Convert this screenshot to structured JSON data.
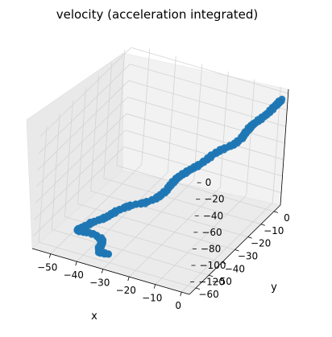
{
  "chart_data": {
    "type": "scatter",
    "title": "velocity (acceleration integrated)",
    "xlabel": "x",
    "ylabel": "y",
    "zlabel": "",
    "xlim": [
      -57,
      3
    ],
    "ylim": [
      -65,
      5
    ],
    "zlim": [
      -135,
      5
    ],
    "x_ticks": [
      "−50",
      "−40",
      "−30",
      "−20",
      "−10",
      "0"
    ],
    "x_tick_values": [
      -50,
      -40,
      -30,
      -20,
      -10,
      0
    ],
    "y_ticks": [
      "0",
      "−10",
      "−20",
      "−30",
      "−40",
      "−50",
      "−60"
    ],
    "y_tick_values": [
      0,
      -10,
      -20,
      -30,
      -40,
      -50,
      -60
    ],
    "z_ticks": [
      "0",
      "−20",
      "−40",
      "−60",
      "−80",
      "−100",
      "−120"
    ],
    "z_tick_values": [
      0,
      -20,
      -40,
      -60,
      -80,
      -100,
      -120
    ],
    "grid": true,
    "marker_color": "#1f77b4",
    "pane_color": "#f2f2f2",
    "grid_color": "#d3d3d3",
    "path_points": [
      {
        "x": 2.4,
        "y": 1.0,
        "z": -2
      },
      {
        "x": 1.8,
        "y": -0.7,
        "z": -5
      },
      {
        "x": 0.9,
        "y": -2.6,
        "z": -9
      },
      {
        "x": -0.3,
        "y": -4.5,
        "z": -14
      },
      {
        "x": -1.9,
        "y": -6.1,
        "z": -19
      },
      {
        "x": -3.3,
        "y": -7.8,
        "z": -23
      },
      {
        "x": -4.1,
        "y": -9.6,
        "z": -26
      },
      {
        "x": -4.6,
        "y": -11.4,
        "z": -30
      },
      {
        "x": -5.1,
        "y": -12.9,
        "z": -34
      },
      {
        "x": -6.5,
        "y": -14.4,
        "z": -39
      },
      {
        "x": -8.4,
        "y": -15.7,
        "z": -43
      },
      {
        "x": -10.8,
        "y": -17.2,
        "z": -47
      },
      {
        "x": -12.5,
        "y": -19.0,
        "z": -51
      },
      {
        "x": -13.8,
        "y": -21.0,
        "z": -55
      },
      {
        "x": -15.6,
        "y": -23.1,
        "z": -60
      },
      {
        "x": -17.4,
        "y": -24.3,
        "z": -64
      },
      {
        "x": -19.1,
        "y": -25.6,
        "z": -68
      },
      {
        "x": -20.7,
        "y": -27.1,
        "z": -72
      },
      {
        "x": -21.9,
        "y": -28.5,
        "z": -76
      },
      {
        "x": -22.6,
        "y": -30.2,
        "z": -80
      },
      {
        "x": -23.4,
        "y": -32.0,
        "z": -85
      },
      {
        "x": -24.5,
        "y": -33.8,
        "z": -89
      },
      {
        "x": -26.3,
        "y": -35.5,
        "z": -93
      },
      {
        "x": -28.8,
        "y": -36.9,
        "z": -97
      },
      {
        "x": -31.7,
        "y": -37.8,
        "z": -100
      },
      {
        "x": -34.6,
        "y": -38.9,
        "z": -104
      },
      {
        "x": -36.9,
        "y": -40.4,
        "z": -108
      },
      {
        "x": -38.4,
        "y": -42.0,
        "z": -111
      },
      {
        "x": -40.0,
        "y": -43.4,
        "z": -115
      },
      {
        "x": -42.3,
        "y": -44.3,
        "z": -119
      },
      {
        "x": -44.6,
        "y": -45.3,
        "z": -123
      },
      {
        "x": -46.4,
        "y": -46.6,
        "z": -127
      },
      {
        "x": -48.1,
        "y": -48.2,
        "z": -130
      },
      {
        "x": -46.6,
        "y": -49.2,
        "z": -129
      },
      {
        "x": -44.3,
        "y": -49.6,
        "z": -127
      },
      {
        "x": -40.8,
        "y": -50.6,
        "z": -125
      },
      {
        "x": -38.0,
        "y": -51.2,
        "z": -126
      },
      {
        "x": -36.7,
        "y": -52.2,
        "z": -128
      },
      {
        "x": -36.6,
        "y": -54.1,
        "z": -131
      },
      {
        "x": -36.0,
        "y": -56.4,
        "z": -133
      },
      {
        "x": -33.9,
        "y": -57.5,
        "z": -131
      },
      {
        "x": -31.6,
        "y": -57.8,
        "z": -129
      }
    ]
  }
}
